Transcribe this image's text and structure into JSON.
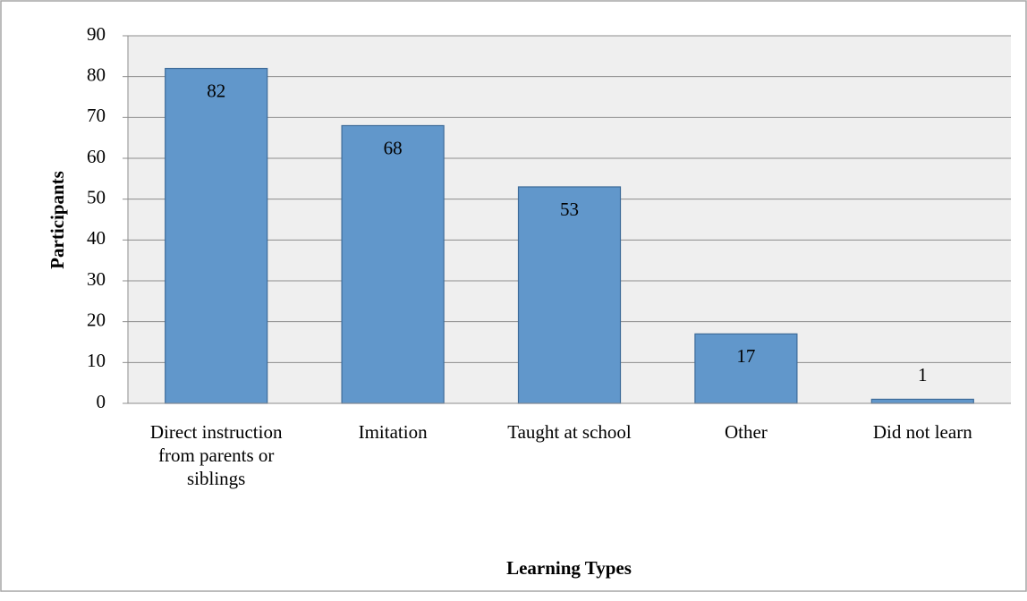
{
  "chart_data": {
    "type": "bar",
    "categories": [
      "Direct instruction from parents or siblings",
      "Imitation",
      "Taught at school",
      "Other",
      "Did not learn"
    ],
    "values": [
      82,
      68,
      53,
      17,
      1
    ],
    "color": "#6197cb",
    "xlabel": "Learning Types",
    "ylabel": "Participants",
    "ylim": [
      0,
      90
    ],
    "yticks": [
      0,
      10,
      20,
      30,
      40,
      50,
      60,
      70,
      80,
      90
    ],
    "grid": true
  }
}
